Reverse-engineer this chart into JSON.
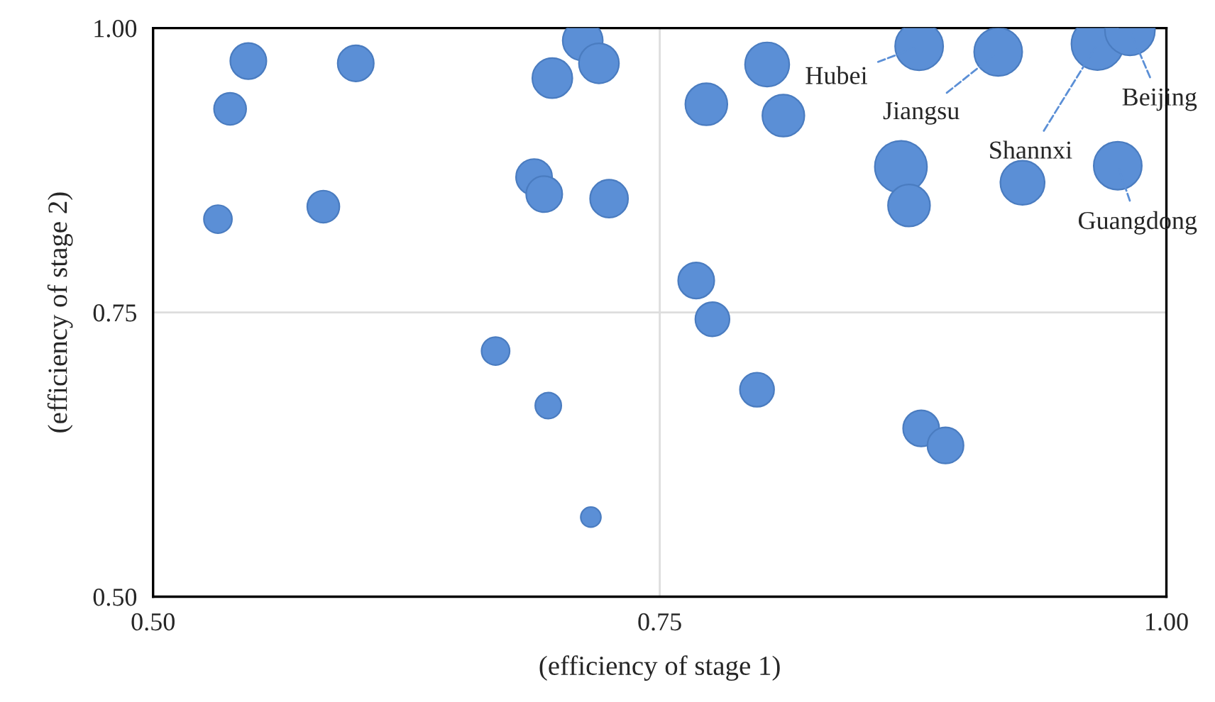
{
  "chart_data": {
    "type": "bubble",
    "xlabel": "(efficiency of stage 1)",
    "ylabel": "(efficiency of stage 2)",
    "xlim": [
      0.5,
      1.0
    ],
    "ylim": [
      0.5,
      1.0
    ],
    "xticks": [
      {
        "value": 0.5,
        "label": "0.50"
      },
      {
        "value": 0.75,
        "label": "0.75"
      },
      {
        "value": 1.0,
        "label": "1.00"
      }
    ],
    "yticks": [
      {
        "value": 0.5,
        "label": "0.50"
      },
      {
        "value": 0.75,
        "label": "0.75"
      },
      {
        "value": 1.0,
        "label": "1.00"
      }
    ],
    "grid": true,
    "legend": false,
    "series": [
      {
        "color": "#5b8fd6",
        "x": [
          0.547,
          0.538,
          0.532,
          0.6,
          0.584,
          0.712,
          0.697,
          0.72,
          0.688,
          0.693,
          0.725,
          0.669,
          0.695,
          0.716,
          0.773,
          0.803,
          0.811,
          0.768,
          0.776,
          0.798,
          0.878,
          0.917,
          0.966,
          0.982,
          0.869,
          0.873,
          0.929,
          0.976,
          0.879,
          0.891
        ],
        "values": [
          0.971,
          0.929,
          0.832,
          0.969,
          0.843,
          0.989,
          0.956,
          0.969,
          0.869,
          0.854,
          0.85,
          0.716,
          0.668,
          0.57,
          0.933,
          0.968,
          0.923,
          0.778,
          0.744,
          0.682,
          0.984,
          0.979,
          0.986,
          0.998,
          0.878,
          0.844,
          0.864,
          0.879,
          0.648,
          0.633
        ],
        "sizes": [
          0.48,
          0.38,
          0.29,
          0.48,
          0.38,
          0.59,
          0.59,
          0.59,
          0.48,
          0.48,
          0.53,
          0.29,
          0.25,
          0.15,
          0.65,
          0.72,
          0.65,
          0.48,
          0.43,
          0.43,
          0.85,
          0.85,
          1,
          0.92,
          1,
          0.65,
          0.72,
          0.85,
          0.48,
          0.48
        ]
      }
    ],
    "annotations": [
      {
        "text": "Hubei",
        "x": 0.878,
        "y": 0.984
      },
      {
        "text": "Jiangsu",
        "x": 0.917,
        "y": 0.979
      },
      {
        "text": "Shannxi",
        "x": 0.966,
        "y": 0.986
      },
      {
        "text": "Beijing",
        "x": 0.982,
        "y": 0.998
      },
      {
        "text": "Guangdong",
        "x": 0.976,
        "y": 0.879
      }
    ]
  }
}
